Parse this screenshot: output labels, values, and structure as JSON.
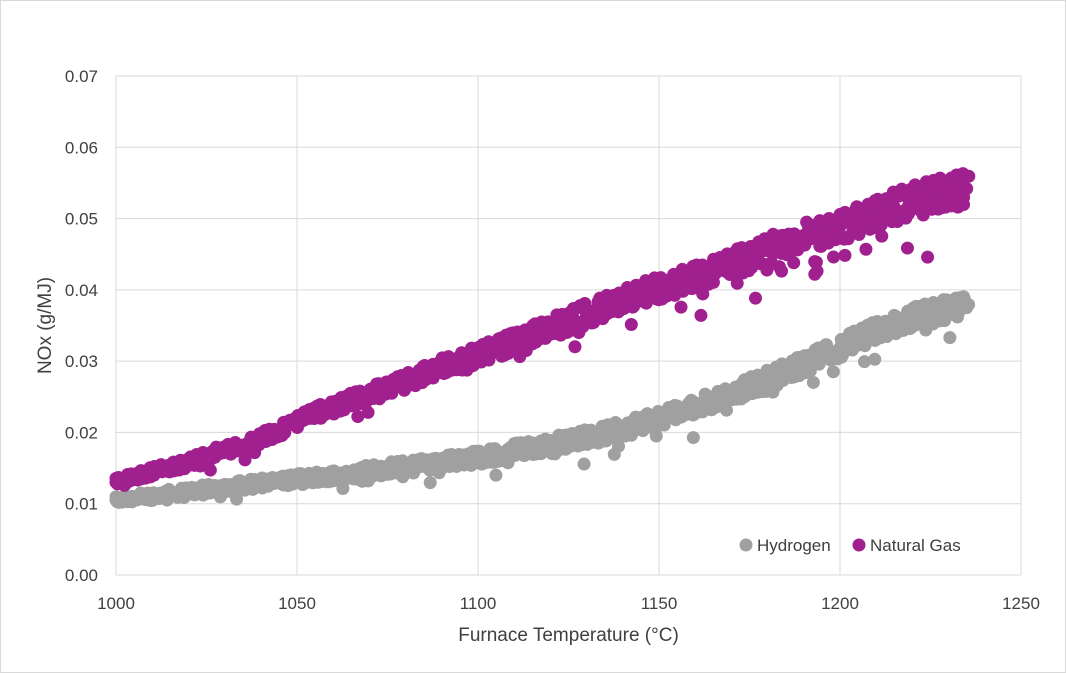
{
  "chart_data": {
    "type": "scatter",
    "xlabel": "Furnace Temperature (°C)",
    "ylabel": "NOx (g/MJ)",
    "xlim": [
      1000,
      1250
    ],
    "ylim": [
      0,
      0.07
    ],
    "x_ticks": [
      1000,
      1050,
      1100,
      1150,
      1200,
      1250
    ],
    "x_tick_labels": [
      "1000",
      "1050",
      "1100",
      "1150",
      "1200",
      "1250"
    ],
    "y_ticks": [
      0,
      0.01,
      0.02,
      0.03,
      0.04,
      0.05,
      0.06,
      0.07
    ],
    "y_tick_labels": [
      "0.00",
      "0.01",
      "0.02",
      "0.03",
      "0.04",
      "0.05",
      "0.06",
      "0.07"
    ],
    "grid": true,
    "legend_position": "bottom-right",
    "series": [
      {
        "name": "Hydrogen",
        "color": "#a0a0a0",
        "x": [
          1000,
          1005,
          1010,
          1015,
          1020,
          1025,
          1030,
          1035,
          1040,
          1045,
          1050,
          1055,
          1060,
          1065,
          1070,
          1075,
          1080,
          1085,
          1090,
          1095,
          1100,
          1105,
          1110,
          1115,
          1120,
          1125,
          1130,
          1135,
          1140,
          1145,
          1150,
          1155,
          1160,
          1165,
          1170,
          1175,
          1180,
          1185,
          1190,
          1195,
          1200,
          1205,
          1210,
          1215,
          1220,
          1225,
          1230,
          1235
        ],
        "y": [
          0.0105,
          0.0108,
          0.0111,
          0.0114,
          0.0117,
          0.012,
          0.0123,
          0.0126,
          0.0129,
          0.0132,
          0.0134,
          0.0137,
          0.014,
          0.0143,
          0.0146,
          0.0149,
          0.0152,
          0.0155,
          0.0158,
          0.0162,
          0.0165,
          0.0169,
          0.0174,
          0.0178,
          0.0183,
          0.0188,
          0.0193,
          0.0199,
          0.0206,
          0.0213,
          0.022,
          0.0228,
          0.0236,
          0.0245,
          0.0254,
          0.0264,
          0.0274,
          0.0285,
          0.0296,
          0.0307,
          0.0319,
          0.033,
          0.0342,
          0.0352,
          0.0361,
          0.0368,
          0.0373,
          0.0375
        ]
      },
      {
        "name": "Natural Gas",
        "color": "#a1208f",
        "x": [
          1000,
          1005,
          1010,
          1015,
          1020,
          1025,
          1030,
          1035,
          1040,
          1045,
          1050,
          1055,
          1060,
          1065,
          1070,
          1075,
          1080,
          1085,
          1090,
          1095,
          1100,
          1105,
          1110,
          1115,
          1120,
          1125,
          1130,
          1135,
          1140,
          1145,
          1150,
          1155,
          1160,
          1165,
          1170,
          1175,
          1180,
          1185,
          1190,
          1195,
          1200,
          1205,
          1210,
          1215,
          1220,
          1225,
          1230,
          1235
        ],
        "y": [
          0.013,
          0.0138,
          0.0145,
          0.0151,
          0.0158,
          0.0167,
          0.0175,
          0.0182,
          0.0192,
          0.0203,
          0.0215,
          0.0226,
          0.0236,
          0.0245,
          0.0253,
          0.0262,
          0.0271,
          0.0282,
          0.0293,
          0.0301,
          0.031,
          0.0318,
          0.0327,
          0.0336,
          0.0346,
          0.0356,
          0.0366,
          0.0377,
          0.0387,
          0.0395,
          0.0403,
          0.0411,
          0.0419,
          0.0427,
          0.0436,
          0.0445,
          0.0455,
          0.0465,
          0.0475,
          0.0482,
          0.0489,
          0.0497,
          0.0507,
          0.0516,
          0.0524,
          0.0531,
          0.0537,
          0.0542
        ]
      }
    ]
  }
}
